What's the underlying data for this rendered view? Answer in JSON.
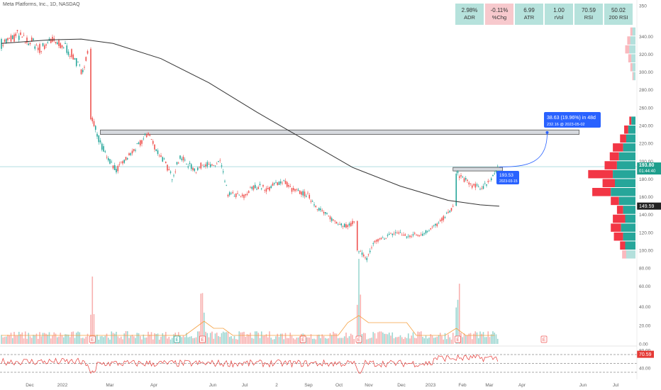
{
  "header": {
    "title": "Meta Platforms, Inc., 1D, NASDAQ"
  },
  "stats": [
    {
      "value": "2.98%",
      "label": "ADR",
      "tone": "up"
    },
    {
      "value": "-0.11%",
      "label": "%Chg",
      "tone": "down"
    },
    {
      "value": "6.99",
      "label": "ATR",
      "tone": "up"
    },
    {
      "value": "1.00",
      "label": "rVol",
      "tone": "up"
    },
    {
      "value": "70.59",
      "label": "RSI",
      "tone": "up"
    },
    {
      "value": "50.02",
      "label": "200 RSI",
      "tone": "up"
    }
  ],
  "colors": {
    "up": "#26a69a",
    "down": "#ef5350",
    "ma": "#333333",
    "zone_fill": "#d6d9de",
    "zone_stroke": "#555555",
    "hline": "#a6d8de",
    "arrow": "#2962ff",
    "vol_ma": "#f5a142",
    "rsi": "#e53935",
    "profile_up": "#26a69a",
    "profile_down": "#f23645"
  },
  "chart_data": {
    "type": "candlestick",
    "symbol": "Meta Platforms, Inc.",
    "interval": "1D",
    "exchange": "NASDAQ",
    "price_axis": {
      "ticks": [
        350,
        340,
        320,
        300,
        280,
        260,
        240,
        220,
        200,
        180,
        160,
        140,
        120,
        100,
        80,
        60,
        40,
        20,
        0.0
      ],
      "tick_labels": [
        "350",
        "340.00",
        "320.00",
        "300.00",
        "280.00",
        "260.00",
        "240.00",
        "220.00",
        "200.00",
        "180.00",
        "160.00",
        "140.00",
        "120.00",
        "100.00",
        "80.00",
        "60.00",
        "40.00",
        "20.00",
        "0.00"
      ]
    },
    "time_axis": {
      "labels": [
        "Dec",
        "2022",
        "Mar",
        "Apr",
        "Jun",
        "Jul",
        "2",
        "Sep",
        "Oct",
        "Nov",
        "Dec",
        "2023",
        "Feb",
        "Mar",
        "Apr",
        "Jun",
        "Jul"
      ]
    },
    "price_path": [
      {
        "d": 0,
        "p": 332
      },
      {
        "d": 5,
        "p": 336
      },
      {
        "d": 10,
        "p": 342
      },
      {
        "d": 15,
        "p": 335
      },
      {
        "d": 20,
        "p": 333
      },
      {
        "d": 25,
        "p": 325
      },
      {
        "d": 30,
        "p": 337
      },
      {
        "d": 35,
        "p": 331
      },
      {
        "d": 40,
        "p": 328
      },
      {
        "d": 45,
        "p": 318
      },
      {
        "d": 50,
        "p": 300
      },
      {
        "d": 55,
        "p": 326
      },
      {
        "d": 57,
        "p": 247
      },
      {
        "d": 62,
        "p": 220
      },
      {
        "d": 67,
        "p": 203
      },
      {
        "d": 72,
        "p": 190
      },
      {
        "d": 77,
        "p": 200
      },
      {
        "d": 82,
        "p": 210
      },
      {
        "d": 87,
        "p": 220
      },
      {
        "d": 92,
        "p": 232
      },
      {
        "d": 97,
        "p": 213
      },
      {
        "d": 102,
        "p": 200
      },
      {
        "d": 107,
        "p": 182
      },
      {
        "d": 112,
        "p": 205
      },
      {
        "d": 117,
        "p": 196
      },
      {
        "d": 122,
        "p": 190
      },
      {
        "d": 127,
        "p": 198
      },
      {
        "d": 132,
        "p": 193
      },
      {
        "d": 137,
        "p": 200
      },
      {
        "d": 142,
        "p": 163
      },
      {
        "d": 147,
        "p": 162
      },
      {
        "d": 152,
        "p": 160
      },
      {
        "d": 157,
        "p": 170
      },
      {
        "d": 162,
        "p": 172
      },
      {
        "d": 167,
        "p": 168
      },
      {
        "d": 172,
        "p": 175
      },
      {
        "d": 177,
        "p": 178
      },
      {
        "d": 182,
        "p": 168
      },
      {
        "d": 187,
        "p": 165
      },
      {
        "d": 192,
        "p": 162
      },
      {
        "d": 197,
        "p": 150
      },
      {
        "d": 202,
        "p": 142
      },
      {
        "d": 207,
        "p": 135
      },
      {
        "d": 212,
        "p": 130
      },
      {
        "d": 217,
        "p": 127
      },
      {
        "d": 222,
        "p": 133
      },
      {
        "d": 224,
        "p": 100
      },
      {
        "d": 229,
        "p": 90
      },
      {
        "d": 234,
        "p": 110
      },
      {
        "d": 239,
        "p": 113
      },
      {
        "d": 244,
        "p": 118
      },
      {
        "d": 249,
        "p": 120
      },
      {
        "d": 254,
        "p": 115
      },
      {
        "d": 259,
        "p": 118
      },
      {
        "d": 264,
        "p": 118
      },
      {
        "d": 269,
        "p": 125
      },
      {
        "d": 274,
        "p": 130
      },
      {
        "d": 279,
        "p": 140
      },
      {
        "d": 284,
        "p": 150
      },
      {
        "d": 286,
        "p": 186
      },
      {
        "d": 291,
        "p": 178
      },
      {
        "d": 296,
        "p": 172
      },
      {
        "d": 301,
        "p": 170
      },
      {
        "d": 305,
        "p": 177
      },
      {
        "d": 309,
        "p": 186
      },
      {
        "d": 312,
        "p": 193.8
      }
    ],
    "moving_average_path": [
      {
        "d": 0,
        "p": 332
      },
      {
        "d": 30,
        "p": 336
      },
      {
        "d": 50,
        "p": 337
      },
      {
        "d": 70,
        "p": 332
      },
      {
        "d": 100,
        "p": 315
      },
      {
        "d": 130,
        "p": 288
      },
      {
        "d": 160,
        "p": 255
      },
      {
        "d": 190,
        "p": 224
      },
      {
        "d": 220,
        "p": 193
      },
      {
        "d": 250,
        "p": 172
      },
      {
        "d": 280,
        "p": 156
      },
      {
        "d": 300,
        "p": 151
      },
      {
        "d": 312,
        "p": 149.59
      }
    ],
    "last_price": "193.80",
    "countdown": "01:44:40",
    "moving_average_value": "149.59",
    "resistance_zone": {
      "from_day": 62,
      "to_day": 362,
      "low": 230,
      "high": 235
    },
    "small_zone": {
      "from_day": 283,
      "to_day": 314,
      "low": 189,
      "high": 193
    },
    "projection": {
      "label": "38.63 (19.96%) in 48d",
      "sublabel": "232.16 @ 2023-05-02",
      "from_day": 312,
      "from_price": 193.53,
      "to_day": 342,
      "to_price": 232.16
    },
    "entry_marker": {
      "label": "193.53",
      "sublabel": "2023-03-15"
    },
    "volume_profile": [
      {
        "price": 245,
        "up": 4,
        "down": 2
      },
      {
        "price": 235,
        "up": 7,
        "down": 4
      },
      {
        "price": 225,
        "up": 9,
        "down": 6
      },
      {
        "price": 215,
        "up": 12,
        "down": 10
      },
      {
        "price": 205,
        "up": 16,
        "down": 9
      },
      {
        "price": 195,
        "up": 18,
        "down": 12
      },
      {
        "price": 185,
        "up": 22,
        "down": 24
      },
      {
        "price": 175,
        "up": 20,
        "down": 12
      },
      {
        "price": 165,
        "up": 24,
        "down": 18
      },
      {
        "price": 155,
        "up": 16,
        "down": 8
      },
      {
        "price": 145,
        "up": 12,
        "down": 6
      },
      {
        "price": 135,
        "up": 10,
        "down": 12
      },
      {
        "price": 125,
        "up": 14,
        "down": 10
      },
      {
        "price": 115,
        "up": 12,
        "down": 9
      },
      {
        "price": 105,
        "up": 10,
        "down": 5
      },
      {
        "price": 95,
        "up": 9,
        "down": 4
      },
      {
        "price": 345,
        "up": 3,
        "down": 2
      },
      {
        "price": 335,
        "up": 5,
        "down": 3
      },
      {
        "price": 325,
        "up": 6,
        "down": 4
      },
      {
        "price": 315,
        "up": 4,
        "down": 3
      },
      {
        "price": 305,
        "up": 3,
        "down": 2
      },
      {
        "price": 295,
        "up": 2,
        "down": 1
      }
    ],
    "earnings_markers": [
      {
        "label": "E",
        "day": 57
      },
      {
        "label": "E",
        "day": 126
      },
      {
        "label": "E",
        "day": 189
      },
      {
        "label": "E",
        "day": 224
      },
      {
        "label": "E",
        "day": 286
      },
      {
        "label": "E",
        "day": 340
      }
    ],
    "dividend_marker": {
      "label": "E",
      "day": 110
    },
    "rsi": {
      "value": "70.59",
      "ticks": [
        80.0,
        40.0
      ],
      "tick_labels": [
        "80.00",
        "40.00"
      ],
      "levels": [
        70,
        50,
        30
      ]
    }
  }
}
